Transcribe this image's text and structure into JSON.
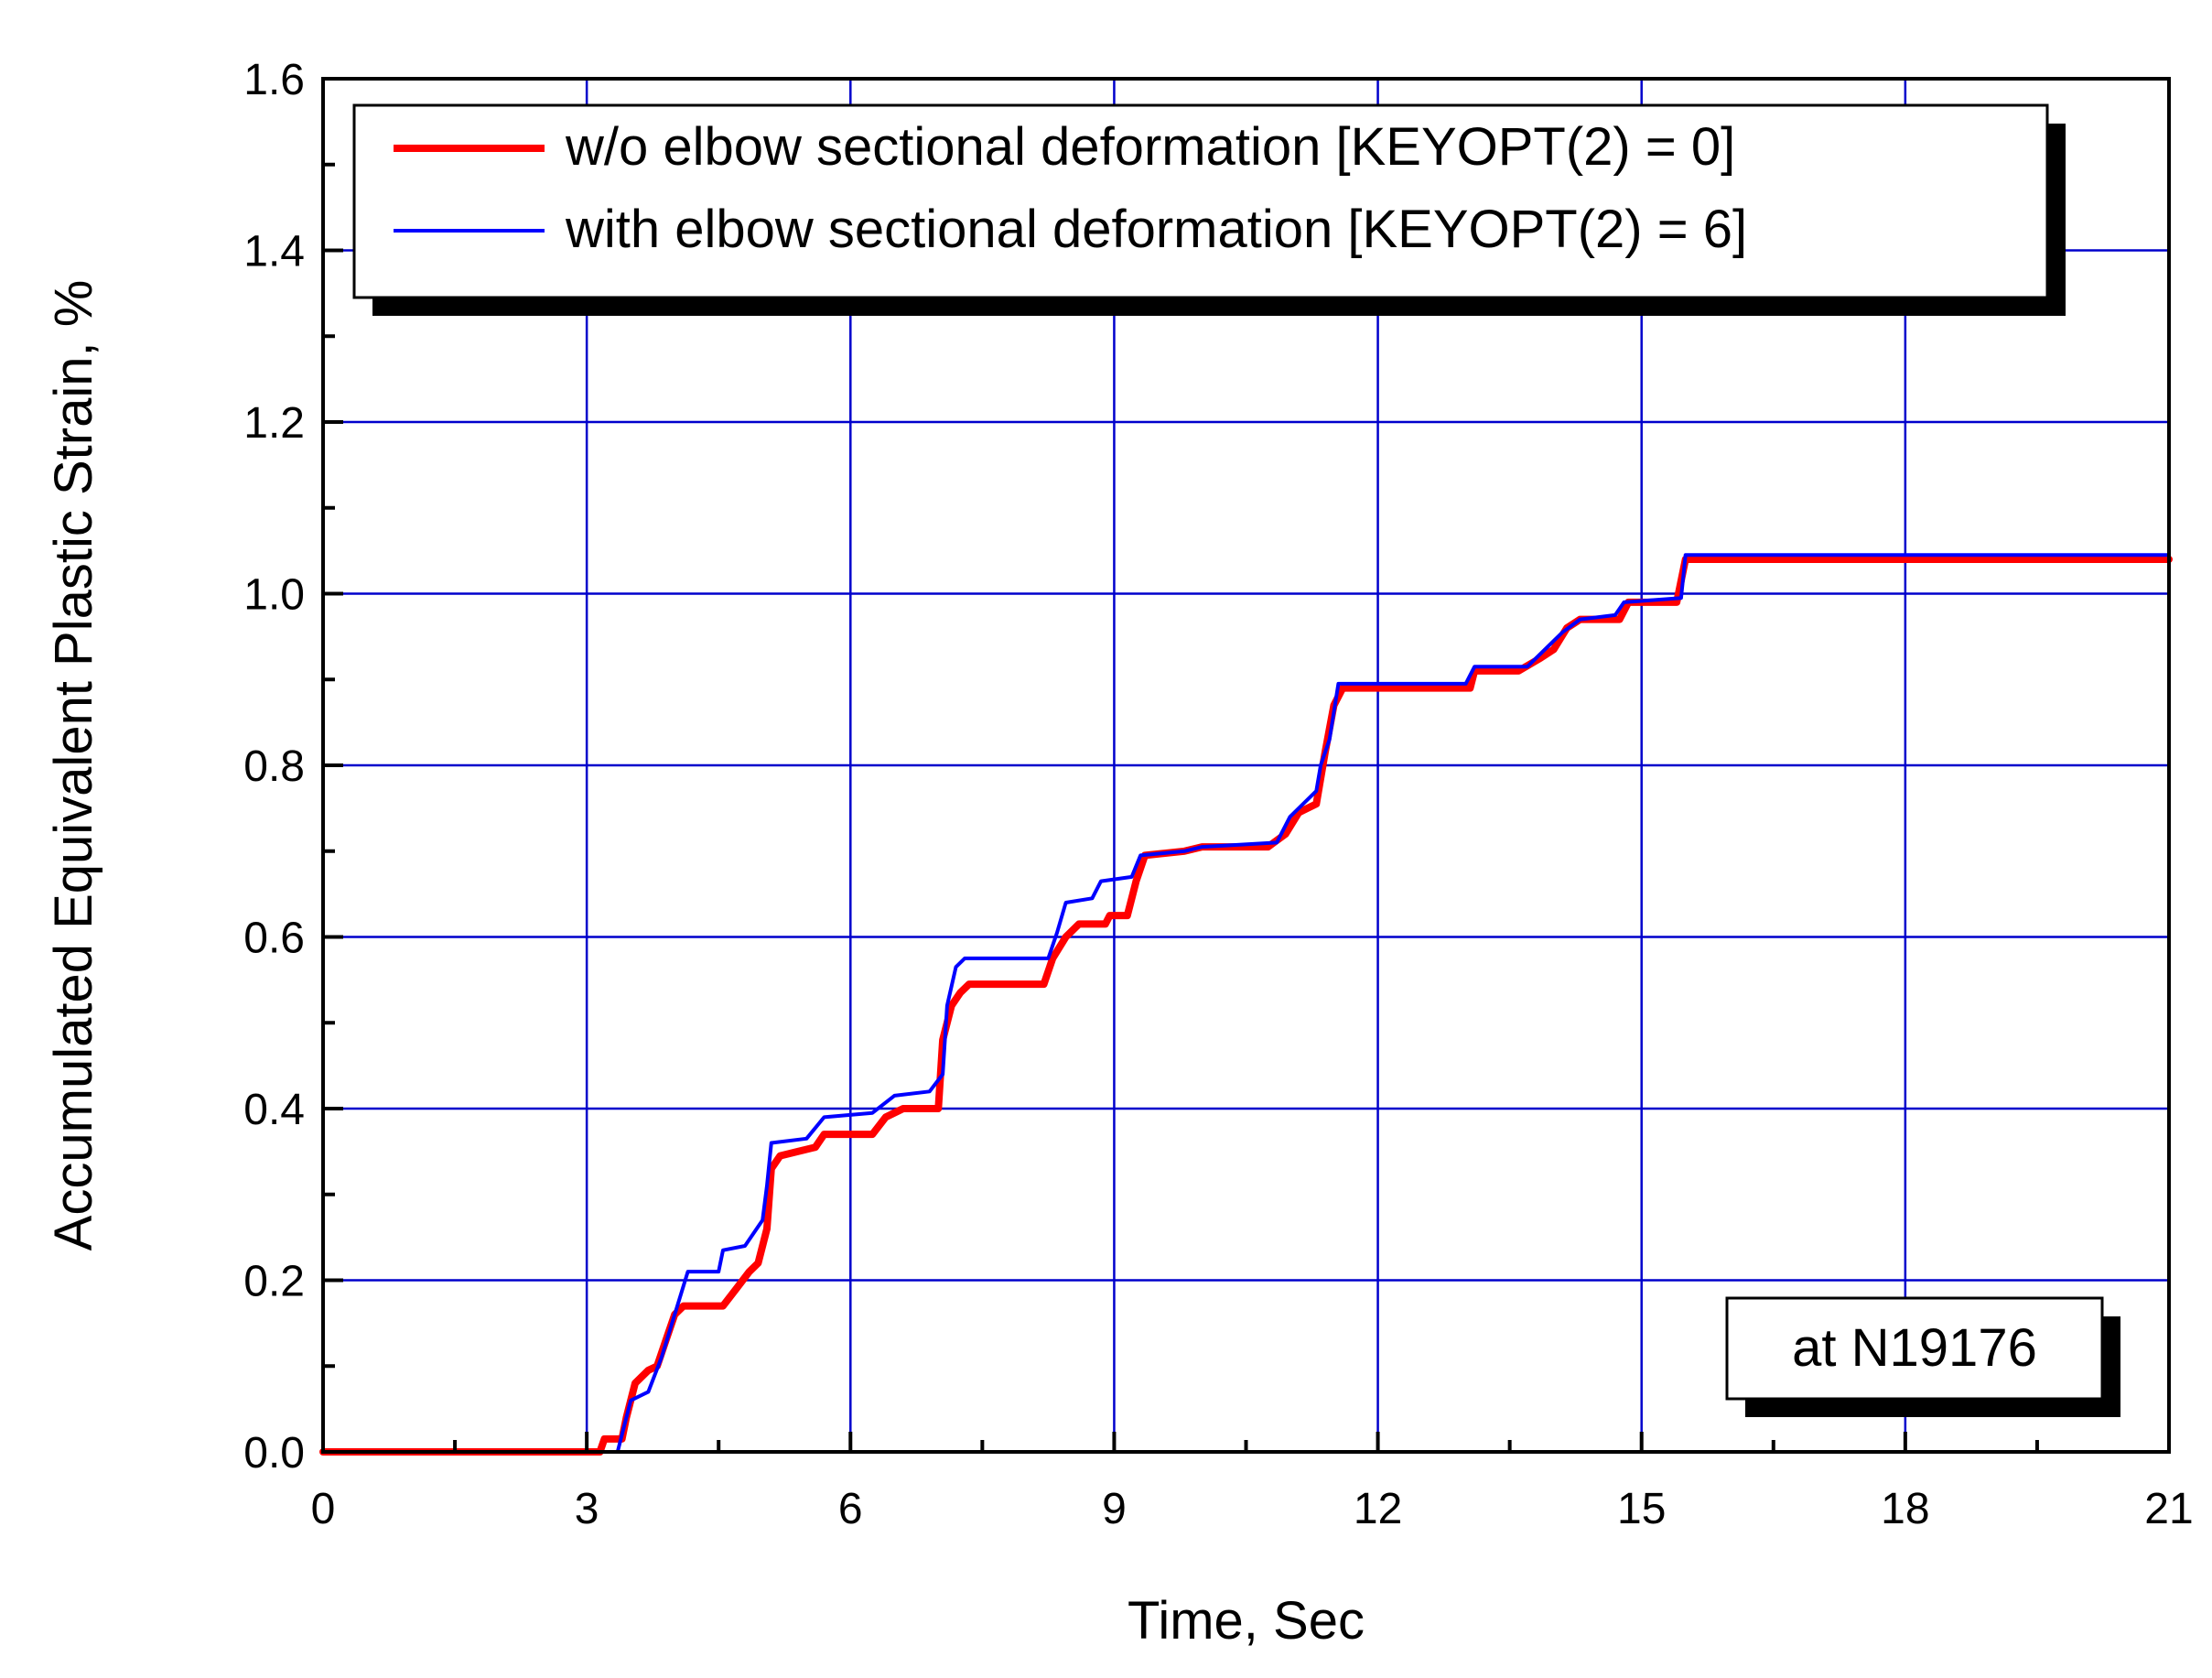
{
  "chart_data": {
    "type": "line",
    "title": "",
    "xlabel": "Time, Sec",
    "ylabel": "Accumulated Equivalent Plastic Strain, %",
    "xlim": [
      0,
      21
    ],
    "ylim": [
      0,
      1.6
    ],
    "xticks": [
      0,
      3,
      6,
      9,
      12,
      15,
      18,
      21
    ],
    "xtick_labels": [
      "0",
      "3",
      "6",
      "9",
      "12",
      "15",
      "18",
      "21"
    ],
    "yticks": [
      0,
      0.2,
      0.4,
      0.6,
      0.8,
      1.0,
      1.2,
      1.4,
      1.6
    ],
    "ytick_labels": [
      "0.0",
      "0.2",
      "0.4",
      "0.6",
      "0.8",
      "1.0",
      "1.2",
      "1.4",
      "1.6"
    ],
    "grid": true,
    "legend_position": "top",
    "annotation": "at N19176",
    "colors": {
      "red_series": "#ff0000",
      "blue_series": "#0000ff",
      "grid": "#0000cc",
      "axis": "#000000"
    },
    "series": [
      {
        "name": "w/o elbow sectional deformation [KEYOPT(2) = 0]",
        "color": "#ff0000",
        "points": [
          [
            0,
            0
          ],
          [
            3.15,
            0
          ],
          [
            3.2,
            0.015
          ],
          [
            3.4,
            0.015
          ],
          [
            3.45,
            0.04
          ],
          [
            3.55,
            0.08
          ],
          [
            3.7,
            0.095
          ],
          [
            3.8,
            0.1
          ],
          [
            3.9,
            0.13
          ],
          [
            4.0,
            0.16
          ],
          [
            4.1,
            0.17
          ],
          [
            4.55,
            0.17
          ],
          [
            4.7,
            0.19
          ],
          [
            4.85,
            0.21
          ],
          [
            4.95,
            0.22
          ],
          [
            5.05,
            0.26
          ],
          [
            5.1,
            0.33
          ],
          [
            5.2,
            0.345
          ],
          [
            5.4,
            0.35
          ],
          [
            5.6,
            0.355
          ],
          [
            5.7,
            0.37
          ],
          [
            6.25,
            0.37
          ],
          [
            6.4,
            0.39
          ],
          [
            6.6,
            0.4
          ],
          [
            7.0,
            0.4
          ],
          [
            7.05,
            0.48
          ],
          [
            7.15,
            0.52
          ],
          [
            7.25,
            0.535
          ],
          [
            7.35,
            0.545
          ],
          [
            8.2,
            0.545
          ],
          [
            8.3,
            0.575
          ],
          [
            8.45,
            0.6
          ],
          [
            8.6,
            0.615
          ],
          [
            8.9,
            0.615
          ],
          [
            8.95,
            0.625
          ],
          [
            9.15,
            0.625
          ],
          [
            9.25,
            0.665
          ],
          [
            9.35,
            0.695
          ],
          [
            9.8,
            0.7
          ],
          [
            10.0,
            0.705
          ],
          [
            10.75,
            0.705
          ],
          [
            10.95,
            0.72
          ],
          [
            11.1,
            0.745
          ],
          [
            11.3,
            0.755
          ],
          [
            11.4,
            0.815
          ],
          [
            11.5,
            0.87
          ],
          [
            11.6,
            0.89
          ],
          [
            13.05,
            0.89
          ],
          [
            13.1,
            0.91
          ],
          [
            13.6,
            0.91
          ],
          [
            13.85,
            0.925
          ],
          [
            14.0,
            0.935
          ],
          [
            14.15,
            0.96
          ],
          [
            14.3,
            0.97
          ],
          [
            14.75,
            0.97
          ],
          [
            14.85,
            0.99
          ],
          [
            15.4,
            0.99
          ],
          [
            15.5,
            1.04
          ],
          [
            21,
            1.04
          ]
        ]
      },
      {
        "name": "with elbow sectional deformation [KEYOPT(2) = 6]",
        "color": "#0000ff",
        "points": [
          [
            0,
            0
          ],
          [
            3.35,
            0
          ],
          [
            3.4,
            0.02
          ],
          [
            3.5,
            0.06
          ],
          [
            3.7,
            0.07
          ],
          [
            3.85,
            0.11
          ],
          [
            4.0,
            0.16
          ],
          [
            4.15,
            0.21
          ],
          [
            4.5,
            0.21
          ],
          [
            4.55,
            0.235
          ],
          [
            4.8,
            0.24
          ],
          [
            5.0,
            0.27
          ],
          [
            5.05,
            0.31
          ],
          [
            5.1,
            0.36
          ],
          [
            5.5,
            0.365
          ],
          [
            5.7,
            0.39
          ],
          [
            6.25,
            0.395
          ],
          [
            6.5,
            0.415
          ],
          [
            6.9,
            0.42
          ],
          [
            7.05,
            0.44
          ],
          [
            7.1,
            0.52
          ],
          [
            7.2,
            0.565
          ],
          [
            7.3,
            0.575
          ],
          [
            8.25,
            0.575
          ],
          [
            8.35,
            0.605
          ],
          [
            8.45,
            0.64
          ],
          [
            8.75,
            0.645
          ],
          [
            8.85,
            0.665
          ],
          [
            9.2,
            0.67
          ],
          [
            9.3,
            0.695
          ],
          [
            9.8,
            0.7
          ],
          [
            10.0,
            0.705
          ],
          [
            10.85,
            0.71
          ],
          [
            11.0,
            0.74
          ],
          [
            11.15,
            0.755
          ],
          [
            11.3,
            0.77
          ],
          [
            11.35,
            0.8
          ],
          [
            11.45,
            0.83
          ],
          [
            11.55,
            0.895
          ],
          [
            13.0,
            0.895
          ],
          [
            13.1,
            0.915
          ],
          [
            13.7,
            0.915
          ],
          [
            13.9,
            0.935
          ],
          [
            14.1,
            0.955
          ],
          [
            14.3,
            0.97
          ],
          [
            14.7,
            0.975
          ],
          [
            14.8,
            0.99
          ],
          [
            15.45,
            0.995
          ],
          [
            15.5,
            1.045
          ],
          [
            21,
            1.045
          ]
        ]
      }
    ]
  }
}
